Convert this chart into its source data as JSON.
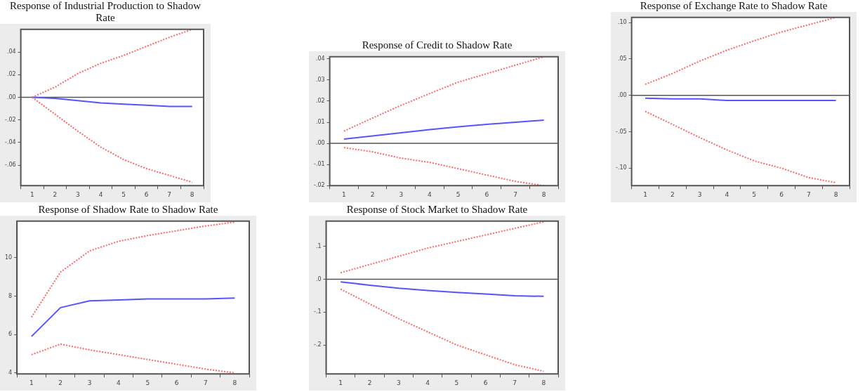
{
  "chart_data": [
    {
      "type": "line",
      "title": "Response of Industrial Production to Shadow Rate",
      "categories": [
        "1",
        "2",
        "3",
        "4",
        "5",
        "6",
        "7",
        "8"
      ],
      "series": [
        {
          "color": "#ff6666",
          "line_style": "dotted",
          "values": [
            0.0,
            0.009,
            0.021,
            0.03,
            0.037,
            0.045,
            0.053,
            0.06
          ]
        },
        {
          "color": "#5555ff",
          "line_style": "solid",
          "values": [
            0.0,
            -0.001,
            -0.003,
            -0.005,
            -0.006,
            -0.007,
            -0.008,
            -0.008
          ]
        },
        {
          "color": "#ff6666",
          "line_style": "dotted",
          "values": [
            0.0,
            -0.015,
            -0.03,
            -0.044,
            -0.055,
            -0.063,
            -0.069,
            -0.075
          ]
        }
      ],
      "ylim": [
        -0.078,
        0.06
      ],
      "yticks": [
        {
          "value": -0.06,
          "label": "-.06"
        },
        {
          "value": -0.04,
          "label": "-.04"
        },
        {
          "value": -0.02,
          "label": "-.02"
        },
        {
          "value": 0,
          "label": ".00"
        },
        {
          "value": 0.02,
          "label": ".02"
        },
        {
          "value": 0.04,
          "label": ".04"
        }
      ],
      "ref_lines": [
        {
          "axis": "y",
          "value": 0,
          "color": "#555555"
        }
      ]
    },
    {
      "type": "line",
      "title": "Response of Credit to Shadow Rate",
      "categories": [
        "1",
        "2",
        "3",
        "4",
        "5",
        "6",
        "7",
        "8"
      ],
      "series": [
        {
          "color": "#ff6666",
          "line_style": "dotted",
          "values": [
            0.0058,
            0.012,
            0.018,
            0.0236,
            0.029,
            0.033,
            0.037,
            0.041
          ]
        },
        {
          "color": "#5555ff",
          "line_style": "solid",
          "values": [
            0.002,
            0.0035,
            0.005,
            0.0065,
            0.0078,
            0.009,
            0.01,
            0.011
          ]
        },
        {
          "color": "#ff6666",
          "line_style": "dotted",
          "values": [
            -0.002,
            -0.004,
            -0.007,
            -0.009,
            -0.012,
            -0.015,
            -0.018,
            -0.02
          ]
        }
      ],
      "ylim": [
        -0.02,
        0.041
      ],
      "yticks": [
        {
          "value": -0.02,
          "label": "-.02"
        },
        {
          "value": -0.01,
          "label": "-.01"
        },
        {
          "value": 0,
          "label": ".00"
        },
        {
          "value": 0.01,
          "label": ".01"
        },
        {
          "value": 0.02,
          "label": ".02"
        },
        {
          "value": 0.03,
          "label": ".03"
        },
        {
          "value": 0.04,
          "label": ".04"
        }
      ],
      "ref_lines": [
        {
          "axis": "y",
          "value": 0,
          "color": "#555555"
        }
      ]
    },
    {
      "type": "line",
      "title": "Response of Exchange Rate to Shadow Rate",
      "categories": [
        "1",
        "2",
        "3",
        "4",
        "5",
        "6",
        "7",
        "8"
      ],
      "series": [
        {
          "color": "#ff6666",
          "line_style": "dotted",
          "values": [
            0.015,
            0.03,
            0.047,
            0.062,
            0.075,
            0.087,
            0.097,
            0.107
          ]
        },
        {
          "color": "#5555ff",
          "line_style": "solid",
          "values": [
            -0.004,
            -0.005,
            -0.005,
            -0.007,
            -0.007,
            -0.007,
            -0.007,
            -0.007
          ]
        },
        {
          "color": "#ff6666",
          "line_style": "dotted",
          "values": [
            -0.022,
            -0.04,
            -0.058,
            -0.075,
            -0.09,
            -0.1,
            -0.113,
            -0.12
          ]
        }
      ],
      "ylim": [
        -0.124,
        0.107
      ],
      "yticks": [
        {
          "value": -0.1,
          "label": "-.10"
        },
        {
          "value": -0.05,
          "label": "-.05"
        },
        {
          "value": 0,
          "label": ".00"
        },
        {
          "value": 0.05,
          "label": ".05"
        },
        {
          "value": 0.1,
          "label": ".10"
        }
      ],
      "ref_lines": [
        {
          "axis": "y",
          "value": 0,
          "color": "#555555"
        }
      ]
    },
    {
      "type": "line",
      "title": "Response of Shadow Rate to Shadow Rate",
      "categories": [
        "1",
        "2",
        "3",
        "4",
        "5",
        "6",
        "7",
        "8"
      ],
      "series": [
        {
          "color": "#ff6666",
          "line_style": "dotted",
          "values": [
            6.9,
            9.25,
            10.35,
            10.85,
            11.15,
            11.4,
            11.65,
            11.85
          ]
        },
        {
          "color": "#5555ff",
          "line_style": "solid",
          "values": [
            5.9,
            7.4,
            7.75,
            7.8,
            7.85,
            7.85,
            7.85,
            7.9
          ]
        },
        {
          "color": "#ff6666",
          "line_style": "dotted",
          "values": [
            4.95,
            5.5,
            5.2,
            4.95,
            4.7,
            4.45,
            4.2,
            4.0
          ]
        }
      ],
      "ylim": [
        3.95,
        11.9
      ],
      "yticks": [
        4,
        6,
        8,
        10
      ]
    },
    {
      "type": "line",
      "title": "Response of Stock Market to Shadow Rate",
      "categories": [
        "1",
        "2",
        "3",
        "4",
        "5",
        "6",
        "7",
        "8"
      ],
      "series": [
        {
          "color": "#ff6666",
          "line_style": "dotted",
          "values": [
            0.02,
            0.045,
            0.07,
            0.095,
            0.115,
            0.135,
            0.155,
            0.175
          ]
        },
        {
          "color": "#5555ff",
          "line_style": "solid",
          "values": [
            -0.008,
            -0.018,
            -0.027,
            -0.034,
            -0.04,
            -0.045,
            -0.05,
            -0.052
          ]
        },
        {
          "color": "#ff6666",
          "line_style": "dotted",
          "values": [
            -0.03,
            -0.075,
            -0.12,
            -0.16,
            -0.2,
            -0.23,
            -0.26,
            -0.28
          ]
        }
      ],
      "ylim": [
        -0.288,
        0.177
      ],
      "yticks": [
        {
          "value": -0.2,
          "label": "-.2"
        },
        {
          "value": -0.1,
          "label": "-.1"
        },
        {
          "value": 0,
          "label": ".0"
        },
        {
          "value": 0.1,
          "label": ".1"
        }
      ],
      "ref_lines": [
        {
          "axis": "y",
          "value": 0,
          "color": "#555555"
        }
      ]
    }
  ]
}
